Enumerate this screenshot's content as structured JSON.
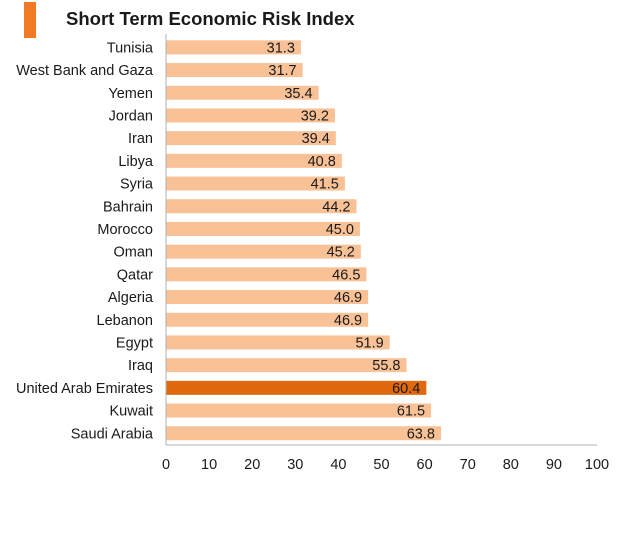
{
  "chart_data": {
    "type": "bar",
    "orientation": "horizontal",
    "title": "Short Term Economic Risk Index",
    "categories": [
      "Tunisia",
      "West Bank and Gaza",
      "Yemen",
      "Jordan",
      "Iran",
      "Libya",
      "Syria",
      "Bahrain",
      "Morocco",
      "Oman",
      "Qatar",
      "Algeria",
      "Lebanon",
      "Egypt",
      "Iraq",
      "United Arab Emirates",
      "Kuwait",
      "Saudi Arabia"
    ],
    "values": [
      31.3,
      31.7,
      35.4,
      39.2,
      39.4,
      40.8,
      41.5,
      44.2,
      45.0,
      45.2,
      46.5,
      46.9,
      46.9,
      51.9,
      55.8,
      60.4,
      61.5,
      63.8
    ],
    "value_labels": [
      "31.3",
      "31.7",
      "35.4",
      "39.2",
      "39.4",
      "40.8",
      "41.5",
      "44.2",
      "45.0",
      "45.2",
      "46.5",
      "46.9",
      "46.9",
      "51.9",
      "55.8",
      "60.4",
      "61.5",
      "63.8"
    ],
    "highlight_category": "United Arab Emirates",
    "xlim": [
      0,
      100
    ],
    "xticks": [
      "0",
      "10",
      "20",
      "30",
      "40",
      "50",
      "60",
      "70",
      "80",
      "90",
      "100"
    ],
    "grid": false,
    "xlabel": "",
    "ylabel": ""
  },
  "colors": {
    "bar": "#f9c196",
    "highlight_bar": "#e0690f",
    "title_accent": "#f07b24",
    "axis": "#b0b0b0"
  }
}
